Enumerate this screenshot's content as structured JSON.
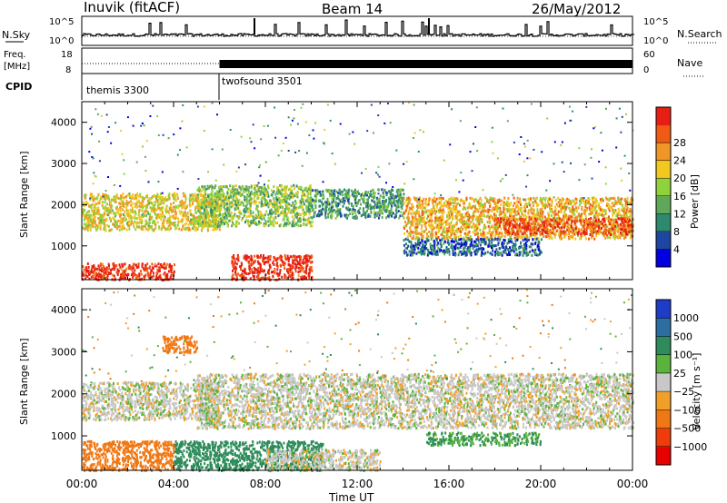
{
  "header": {
    "station": "Inuvik (fitACF)",
    "beam": "Beam 14",
    "date": "26/May/2012"
  },
  "noise_panel": {
    "left_label": "N.Sky",
    "left_ticks": [
      "10^5",
      "10^0"
    ],
    "right_label": "N.Search",
    "right_ticks": [
      "10^5",
      "10^0"
    ]
  },
  "freq_panel": {
    "left_label_top": "Freq.",
    "left_label_bottom": "[MHz]",
    "left_ticks": [
      "18",
      "8"
    ],
    "right_label": "Nave",
    "right_ticks": [
      "60",
      "0"
    ]
  },
  "cpid": {
    "label": "CPID",
    "modes": [
      "themis 3300",
      "twofsound 3501"
    ]
  },
  "power_panel": {
    "ylabel": "Slant Range [km]",
    "yticks": [
      "1000",
      "2000",
      "3000",
      "4000"
    ],
    "colorbar_label": "Power [dB]",
    "colorbar_ticks": [
      "4",
      "8",
      "12",
      "16",
      "20",
      "24",
      "28"
    ],
    "colorbar_colors": [
      "#0000e0",
      "#1e46a0",
      "#2d8a6e",
      "#5fa85a",
      "#8fd23c",
      "#f0c81e",
      "#f09628",
      "#f05a14",
      "#e61e14"
    ]
  },
  "velocity_panel": {
    "ylabel": "Slant Range [km]",
    "yticks": [
      "1000",
      "2000",
      "3000",
      "4000"
    ],
    "colorbar_label": "Velocity [m s⁻¹]",
    "colorbar_ticks": [
      "1000",
      "500",
      "100",
      "25",
      "−25",
      "−100",
      "−500",
      "−1000"
    ],
    "colorbar_colors": [
      "#1e3cc8",
      "#2d6ea0",
      "#2d8c5a",
      "#5ab43c",
      "#c8c8c8",
      "#f0a028",
      "#f07814",
      "#f03c0a",
      "#e60000"
    ]
  },
  "x_axis": {
    "ticks": [
      "00:00",
      "04:00",
      "08:00",
      "12:00",
      "16:00",
      "20:00",
      "00:00"
    ],
    "label": "Time UT"
  },
  "chart_data": {
    "type": "heatmap",
    "x_range_hours": [
      0,
      24
    ],
    "y_range_km": [
      180,
      4500
    ],
    "cpid_modes": [
      {
        "name": "themis 3300",
        "start_hour": 0,
        "end_hour": 6
      },
      {
        "name": "twofsound 3501",
        "start_hour": 6,
        "end_hour": 24
      }
    ],
    "power_scale_db": [
      0,
      30
    ],
    "velocity_scale_ms": [
      -1000,
      1000
    ],
    "power_regions": [
      {
        "t0": 0.0,
        "t1": 6.0,
        "r0": 1400,
        "r1": 2300,
        "level": 18
      },
      {
        "t0": 0.0,
        "t1": 4.0,
        "r0": 200,
        "r1": 600,
        "level": 28
      },
      {
        "t0": 6.5,
        "t1": 10.0,
        "r0": 200,
        "r1": 800,
        "level": 28
      },
      {
        "t0": 5.0,
        "t1": 10.0,
        "r0": 1500,
        "r1": 2500,
        "level": 14
      },
      {
        "t0": 10.0,
        "t1": 14.0,
        "r0": 1700,
        "r1": 2400,
        "level": 10
      },
      {
        "t0": 14.0,
        "t1": 24.0,
        "r0": 1200,
        "r1": 2200,
        "level": 20
      },
      {
        "t0": 18.0,
        "t1": 24.0,
        "r0": 1300,
        "r1": 1700,
        "level": 26
      },
      {
        "t0": 14.0,
        "t1": 20.0,
        "r0": 800,
        "r1": 1200,
        "level": 6
      }
    ],
    "velocity_regions": [
      {
        "t0": 0.0,
        "t1": 6.0,
        "r0": 1400,
        "r1": 2300,
        "level": 0
      },
      {
        "t0": 0.0,
        "t1": 4.0,
        "r0": 200,
        "r1": 900,
        "level": -200
      },
      {
        "t0": 4.0,
        "t1": 10.5,
        "r0": 200,
        "r1": 900,
        "level": 150
      },
      {
        "t0": 8.0,
        "t1": 13.0,
        "r0": 200,
        "r1": 700,
        "level": 0
      },
      {
        "t0": 5.0,
        "t1": 24.0,
        "r0": 1200,
        "r1": 2500,
        "level": 0
      },
      {
        "t0": 3.5,
        "t1": 5.0,
        "r0": 3000,
        "r1": 3400,
        "level": -300
      },
      {
        "t0": 15.0,
        "t1": 20.0,
        "r0": 800,
        "r1": 1100,
        "level": 100
      }
    ]
  }
}
